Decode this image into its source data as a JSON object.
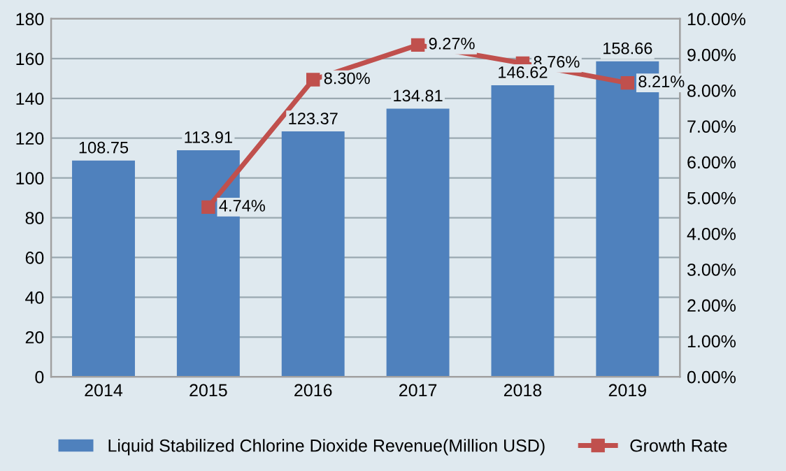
{
  "chart_data": {
    "type": "bar",
    "categories": [
      "2014",
      "2015",
      "2016",
      "2017",
      "2018",
      "2019"
    ],
    "series": [
      {
        "name": "Liquid Stabilized Chlorine Dioxide Revenue(Million USD)",
        "type": "bar",
        "color": "#4f81bd",
        "values": [
          108.75,
          113.91,
          123.37,
          134.81,
          146.62,
          158.66
        ],
        "value_labels": [
          "108.75",
          "113.91",
          "123.37",
          "134.81",
          "146.62",
          "158.66"
        ]
      },
      {
        "name": "Growth Rate",
        "type": "line",
        "axis": "y2",
        "color": "#c0504d",
        "marker": "square",
        "values": [
          null,
          4.74,
          8.3,
          9.27,
          8.76,
          8.21
        ],
        "value_labels": [
          null,
          "4.74%",
          "8.30%",
          "9.27%",
          "8.76%",
          "8.21%"
        ]
      }
    ],
    "ylim": [
      0,
      180
    ],
    "yticks": [
      0,
      20,
      40,
      60,
      80,
      100,
      120,
      140,
      160,
      180
    ],
    "y2lim": [
      0,
      10
    ],
    "y2ticks": [
      {
        "value": 0,
        "label": "0.00%"
      },
      {
        "value": 1,
        "label": "1.00%"
      },
      {
        "value": 2,
        "label": "2.00%"
      },
      {
        "value": 3,
        "label": "3.00%"
      },
      {
        "value": 4,
        "label": "4.00%"
      },
      {
        "value": 5,
        "label": "5.00%"
      },
      {
        "value": 6,
        "label": "6.00%"
      },
      {
        "value": 7,
        "label": "7.00%"
      },
      {
        "value": 8,
        "label": "8.00%"
      },
      {
        "value": 9,
        "label": "9.00%"
      },
      {
        "value": 10,
        "label": "10.00%"
      }
    ],
    "grid": "y",
    "legend": "bottom"
  }
}
